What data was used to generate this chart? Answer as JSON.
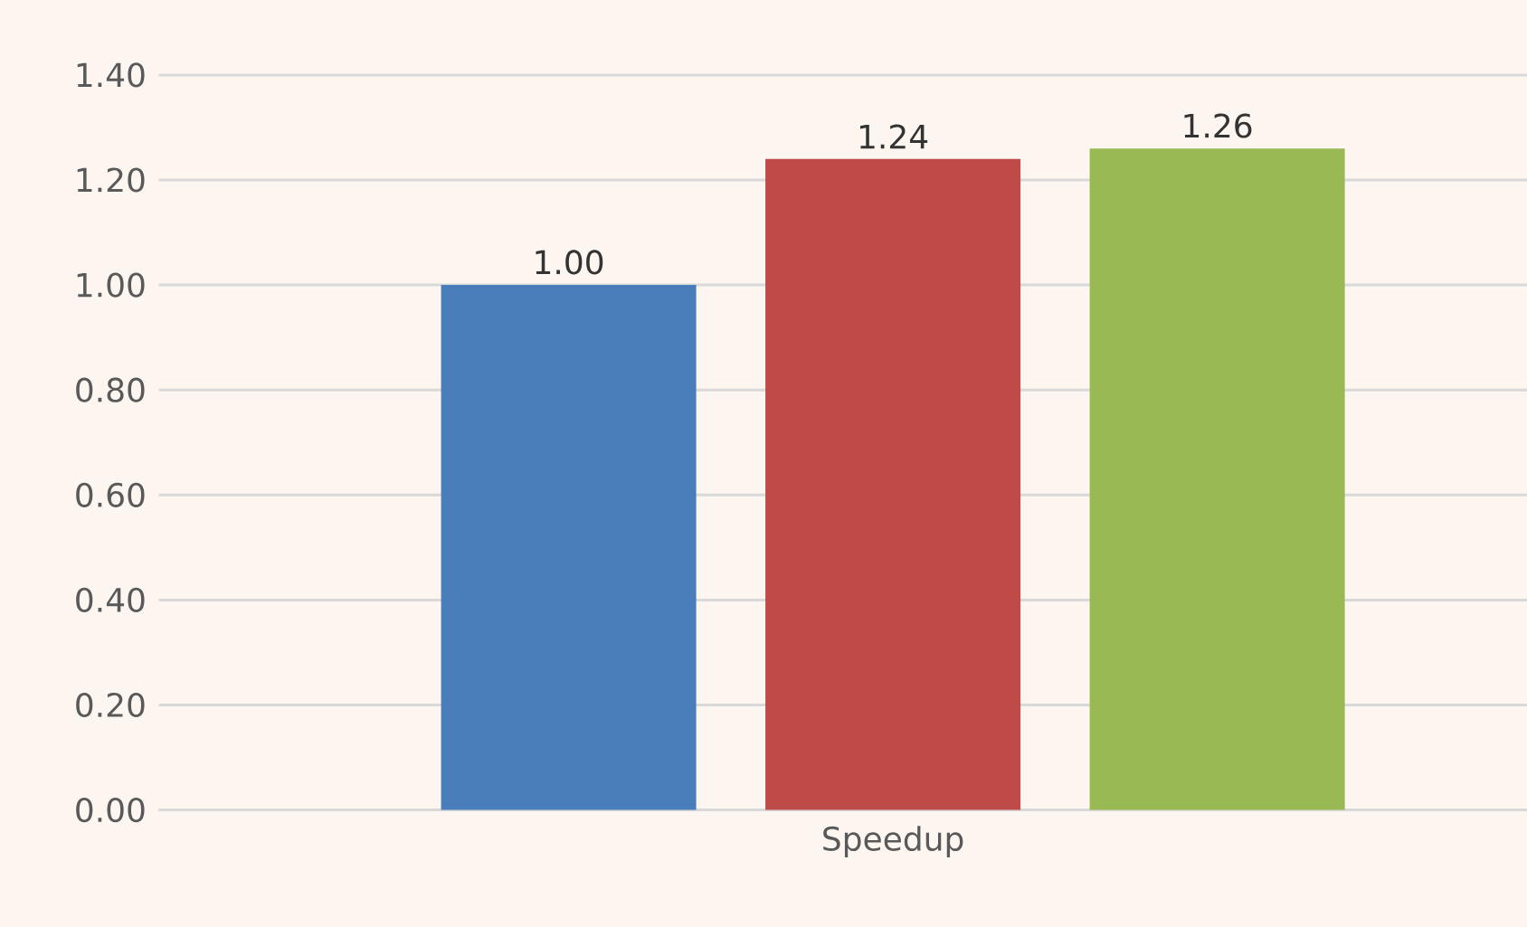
{
  "chart_data": {
    "type": "bar",
    "categories": [
      "Speedup"
    ],
    "series": [
      {
        "color": "#4a7ebb",
        "values": [
          1.0
        ],
        "value_labels": [
          "1.00"
        ]
      },
      {
        "color": "#be4b48",
        "values": [
          1.24
        ],
        "value_labels": [
          "1.24"
        ]
      },
      {
        "color": "#98b954",
        "values": [
          1.26
        ],
        "value_labels": [
          "1.26"
        ]
      }
    ],
    "ylim": [
      0,
      1.4
    ],
    "yticks": [
      {
        "value": 0,
        "label": "0.00"
      },
      {
        "value": 0.2,
        "label": "0.20"
      },
      {
        "value": 0.4,
        "label": "0.40"
      },
      {
        "value": 0.6,
        "label": "0.60"
      },
      {
        "value": 0.8,
        "label": "0.80"
      },
      {
        "value": 1.0,
        "label": "1.00"
      },
      {
        "value": 1.2,
        "label": "1.20"
      },
      {
        "value": 1.4,
        "label": "1.40"
      }
    ],
    "grid": "y"
  }
}
